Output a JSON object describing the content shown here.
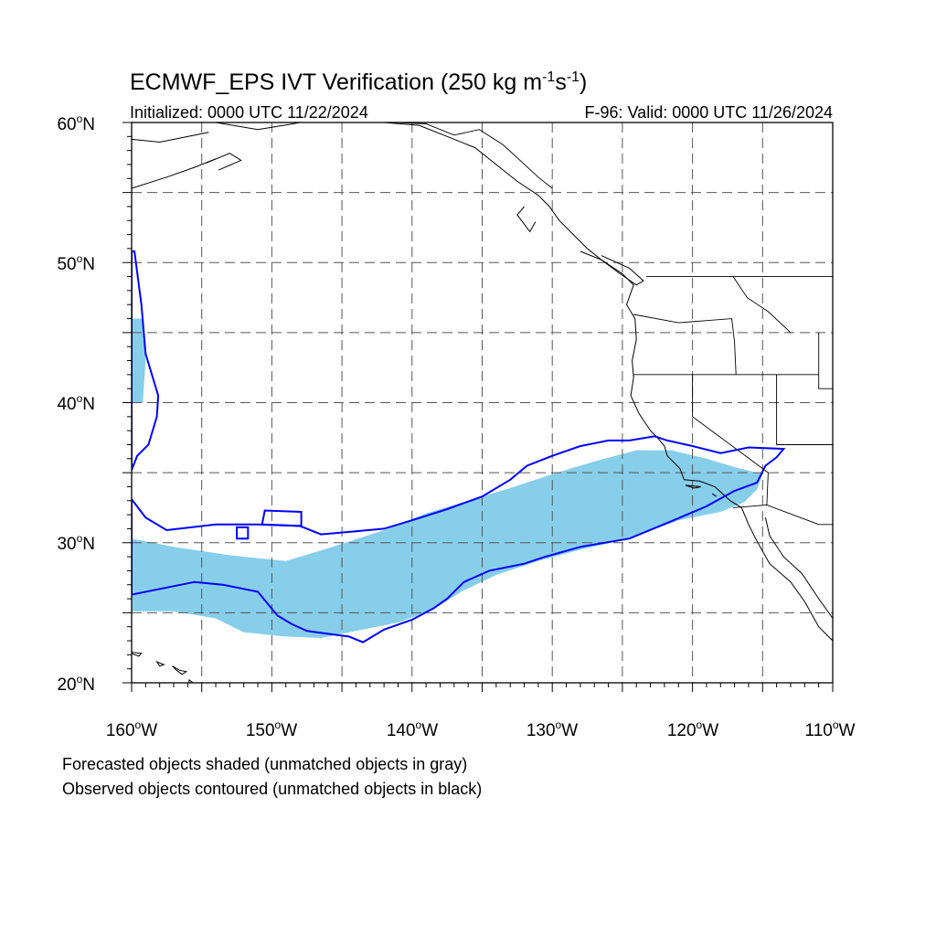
{
  "title": {
    "main": "ECMWF_EPS IVT Verification (250 kg m",
    "exp1": "-1",
    "mid": "s",
    "exp2": "-1",
    "close": ")"
  },
  "subtitle_left": "Initialized: 0000 UTC 11/22/2024",
  "subtitle_right": "F-96: Valid: 0000 UTC 11/26/2024",
  "lat_labels": [
    {
      "deg": "60",
      "suffix": "N"
    },
    {
      "deg": "50",
      "suffix": "N"
    },
    {
      "deg": "40",
      "suffix": "N"
    },
    {
      "deg": "30",
      "suffix": "N"
    },
    {
      "deg": "20",
      "suffix": "N"
    }
  ],
  "lon_labels": [
    {
      "deg": "160",
      "suffix": "W"
    },
    {
      "deg": "150",
      "suffix": "W"
    },
    {
      "deg": "140",
      "suffix": "W"
    },
    {
      "deg": "130",
      "suffix": "W"
    },
    {
      "deg": "120",
      "suffix": "W"
    },
    {
      "deg": "110",
      "suffix": "W"
    }
  ],
  "footnote_1": "Forecasted objects shaded (unmatched objects in gray)",
  "footnote_2": "Observed objects contoured (unmatched objects in black)",
  "map_extent": {
    "lon_min": -160,
    "lon_max": -110,
    "lat_min": 20,
    "lat_max": 60
  },
  "colors": {
    "forecast_fill": "#87ceeb",
    "observed_contour": "#0000ff",
    "coastline": "#000000",
    "grid": "#555555"
  },
  "forecast_objects": [
    {
      "lonlat": [
        [
          -160,
          30.3
        ],
        [
          -157,
          29.7
        ],
        [
          -153,
          29.1
        ],
        [
          -149,
          28.7
        ],
        [
          -146,
          29.6
        ],
        [
          -142,
          30.9
        ],
        [
          -139,
          32.1
        ],
        [
          -136,
          33
        ],
        [
          -133,
          33.9
        ],
        [
          -130,
          34.9
        ],
        [
          -127,
          35.8
        ],
        [
          -124,
          36.6
        ],
        [
          -121.5,
          36.6
        ],
        [
          -119,
          36
        ],
        [
          -117,
          35.4
        ],
        [
          -115,
          34.9
        ],
        [
          -115.4,
          33.8
        ],
        [
          -116.3,
          32.9
        ],
        [
          -118,
          32.2
        ],
        [
          -121,
          31.6
        ],
        [
          -124.5,
          30.3
        ],
        [
          -128,
          29.5
        ],
        [
          -131,
          28.7
        ],
        [
          -134,
          27.7
        ],
        [
          -136.5,
          26.5
        ],
        [
          -138.5,
          25.2
        ],
        [
          -141,
          24.3
        ],
        [
          -144,
          23.7
        ],
        [
          -146.5,
          23.2
        ],
        [
          -149,
          23.3
        ],
        [
          -152,
          23.6
        ],
        [
          -154,
          24.6
        ],
        [
          -157,
          25.1
        ],
        [
          -160,
          25.1
        ]
      ]
    },
    {
      "lonlat": [
        [
          -160,
          46
        ],
        [
          -159.2,
          46
        ],
        [
          -159,
          43
        ],
        [
          -159.2,
          40
        ],
        [
          -160,
          40
        ]
      ]
    }
  ],
  "observed_contours": [
    {
      "lonlat": [
        [
          -160,
          26.3
        ],
        [
          -157.5,
          26.8
        ],
        [
          -155.5,
          27.2
        ],
        [
          -153.5,
          27
        ],
        [
          -151,
          26.5
        ],
        [
          -149.6,
          24.8
        ],
        [
          -148.6,
          24.2
        ],
        [
          -147.5,
          23.7
        ],
        [
          -146,
          23.5
        ],
        [
          -144.5,
          23.3
        ],
        [
          -143.5,
          22.9
        ],
        [
          -142,
          23.8
        ],
        [
          -140,
          24.5
        ],
        [
          -138.5,
          25.3
        ],
        [
          -137.5,
          26
        ],
        [
          -136.3,
          27.2
        ],
        [
          -134.5,
          28
        ],
        [
          -132,
          28.5
        ],
        [
          -130.5,
          29
        ],
        [
          -128,
          29.7
        ],
        [
          -124.5,
          30.3
        ],
        [
          -121.6,
          31.5
        ],
        [
          -119,
          32.6
        ],
        [
          -117,
          33.7
        ],
        [
          -115.4,
          34.3
        ],
        [
          -114.8,
          35.5
        ],
        [
          -114,
          36.1
        ],
        [
          -113.5,
          36.7
        ],
        [
          -116,
          36.8
        ],
        [
          -118,
          36.4
        ],
        [
          -120,
          36.9
        ],
        [
          -121.8,
          37.3
        ],
        [
          -122.7,
          37.6
        ],
        [
          -124.5,
          37.3
        ],
        [
          -126,
          37.3
        ],
        [
          -128,
          36.9
        ],
        [
          -130,
          36.2
        ],
        [
          -131.8,
          35.5
        ],
        [
          -133,
          34.5
        ],
        [
          -135,
          33.3
        ],
        [
          -137.5,
          32.4
        ],
        [
          -140,
          31.6
        ],
        [
          -142,
          31
        ],
        [
          -144.2,
          30.8
        ],
        [
          -146.5,
          30.6
        ],
        [
          -148,
          31.2
        ],
        [
          -151,
          31.3
        ],
        [
          -154,
          31.3
        ],
        [
          -157.5,
          30.9
        ],
        [
          -159,
          31.8
        ],
        [
          -160,
          33.1
        ]
      ]
    },
    {
      "lonlat": [
        [
          -160,
          35.2
        ],
        [
          -159.6,
          36.2
        ],
        [
          -158.8,
          37
        ],
        [
          -158.2,
          39
        ],
        [
          -158.1,
          40.5
        ],
        [
          -159,
          43.5
        ],
        [
          -159.3,
          47
        ],
        [
          -159.8,
          50.8
        ],
        [
          -160,
          50.8
        ]
      ]
    },
    {
      "lonlat": [
        [
          -152.5,
          30.3
        ],
        [
          -151.7,
          30.3
        ],
        [
          -151.7,
          31.1
        ],
        [
          -152.5,
          31.1
        ]
      ]
    },
    {
      "lonlat": [
        [
          -147.9,
          32.2
        ],
        [
          -150.5,
          32.3
        ],
        [
          -150.7,
          31.3
        ],
        [
          -147.9,
          31.2
        ]
      ]
    }
  ],
  "coastlines": [
    {
      "lonlat": [
        [
          -154,
          60
        ],
        [
          -151,
          59.5
        ],
        [
          -148.5,
          59.9
        ],
        [
          -146,
          60.4
        ],
        [
          -143.5,
          60
        ]
      ]
    },
    {
      "lonlat": [
        [
          -160,
          58.8
        ],
        [
          -158,
          58.6
        ],
        [
          -156.5,
          58.9
        ],
        [
          -154.5,
          59.3
        ]
      ]
    },
    {
      "lonlat": [
        [
          -160,
          55.3
        ],
        [
          -157.5,
          56.1
        ],
        [
          -155.5,
          56.8
        ],
        [
          -154,
          57.4
        ]
      ]
    },
    {
      "lonlat": [
        [
          -154.7,
          57.1
        ],
        [
          -153,
          57.8
        ],
        [
          -152.2,
          57.3
        ],
        [
          -153.8,
          56.6
        ]
      ]
    },
    {
      "lonlat": [
        [
          -142,
          60
        ],
        [
          -139.5,
          59.8
        ],
        [
          -137.5,
          59
        ],
        [
          -135.5,
          58.2
        ],
        [
          -134,
          57
        ],
        [
          -132.5,
          55.8
        ],
        [
          -131,
          54.8
        ],
        [
          -130.2,
          54
        ],
        [
          -129.5,
          53
        ],
        [
          -128.5,
          52
        ],
        [
          -127.5,
          51
        ],
        [
          -126.5,
          50.2
        ],
        [
          -125,
          49.2
        ],
        [
          -124.2,
          48.4
        ],
        [
          -124.7,
          47
        ],
        [
          -124.1,
          46
        ],
        [
          -124,
          44.5
        ],
        [
          -124.3,
          43
        ],
        [
          -124.2,
          41.8
        ],
        [
          -124.4,
          40.5
        ],
        [
          -123.8,
          39.2
        ],
        [
          -123,
          38
        ],
        [
          -122.5,
          37.5
        ],
        [
          -122,
          36.9
        ],
        [
          -121.8,
          36.2
        ],
        [
          -120.9,
          35.3
        ],
        [
          -120.6,
          34.5
        ],
        [
          -119.5,
          34.4
        ],
        [
          -118.4,
          34
        ],
        [
          -117.3,
          33
        ],
        [
          -116.5,
          32.5
        ],
        [
          -116,
          31.3
        ],
        [
          -115.5,
          30.3
        ],
        [
          -114.5,
          28.5
        ],
        [
          -113,
          27.2
        ],
        [
          -112,
          25.8
        ],
        [
          -111,
          24
        ],
        [
          -110,
          23
        ]
      ]
    },
    {
      "lonlat": [
        [
          -132,
          54
        ],
        [
          -132.5,
          53.4
        ],
        [
          -131.6,
          52.2
        ],
        [
          -131.2,
          52.9
        ]
      ]
    },
    {
      "lonlat": [
        [
          -128,
          50.8
        ],
        [
          -126.5,
          50.2
        ],
        [
          -125.3,
          49.3
        ],
        [
          -124,
          48.4
        ],
        [
          -123.5,
          48.7
        ],
        [
          -124.5,
          49.6
        ],
        [
          -126.5,
          50.5
        ]
      ]
    },
    {
      "lonlat": [
        [
          -114.8,
          31.8
        ],
        [
          -114.5,
          30.5
        ],
        [
          -113.5,
          29
        ],
        [
          -112.2,
          27.8
        ],
        [
          -111,
          26
        ],
        [
          -110,
          24.6
        ]
      ]
    }
  ],
  "borders": [
    {
      "lonlat": [
        [
          -141,
          60
        ],
        [
          -139,
          59.9
        ],
        [
          -137,
          59.1
        ],
        [
          -135.2,
          59.5
        ],
        [
          -133.5,
          58.4
        ],
        [
          -131,
          56.1
        ],
        [
          -130,
          55.3
        ]
      ]
    },
    {
      "lonlat": [
        [
          -123.3,
          49
        ],
        [
          -110,
          49
        ]
      ]
    },
    {
      "lonlat": [
        [
          -124.2,
          46.3
        ],
        [
          -121,
          45.7
        ],
        [
          -117.2,
          46
        ],
        [
          -117,
          44.3
        ],
        [
          -116.9,
          42
        ]
      ]
    },
    {
      "lonlat": [
        [
          -124.2,
          42
        ],
        [
          -111,
          42
        ]
      ]
    },
    {
      "lonlat": [
        [
          -120,
          42
        ],
        [
          -120,
          39
        ],
        [
          -114.6,
          35
        ],
        [
          -114.7,
          32.7
        ]
      ]
    },
    {
      "lonlat": [
        [
          -117.1,
          32.5
        ],
        [
          -114.7,
          32.7
        ],
        [
          -111,
          31.3
        ],
        [
          -110,
          31.3
        ]
      ]
    },
    {
      "lonlat": [
        [
          -117.1,
          49
        ],
        [
          -116.1,
          47.5
        ],
        [
          -114.6,
          46.5
        ],
        [
          -113,
          45
        ]
      ]
    },
    {
      "lonlat": [
        [
          -114,
          42
        ],
        [
          -114,
          37
        ],
        [
          -110,
          37
        ]
      ]
    },
    {
      "lonlat": [
        [
          -111,
          45
        ],
        [
          -111,
          41
        ],
        [
          -110,
          41
        ]
      ]
    }
  ],
  "islands": [
    {
      "lonlat": [
        [
          -160.2,
          22.2
        ],
        [
          -159.3,
          22.1
        ],
        [
          -159.5,
          21.9
        ],
        [
          -160,
          22.1
        ]
      ]
    },
    {
      "lonlat": [
        [
          -158.2,
          21.5
        ],
        [
          -157.7,
          21.3
        ],
        [
          -158,
          21.2
        ]
      ]
    },
    {
      "lonlat": [
        [
          -157.1,
          21.2
        ],
        [
          -156.6,
          20.9
        ],
        [
          -156.1,
          20.8
        ],
        [
          -156.4,
          20.6
        ],
        [
          -156.8,
          20.9
        ]
      ]
    },
    {
      "lonlat": [
        [
          -155.9,
          20.2
        ],
        [
          -154.9,
          19.5
        ],
        [
          -155.4,
          19.0
        ],
        [
          -155.9,
          19.4
        ]
      ]
    },
    {
      "lonlat": [
        [
          -120.5,
          34.1
        ],
        [
          -119.4,
          34.0
        ],
        [
          -119.9,
          33.9
        ]
      ]
    },
    {
      "lonlat": [
        [
          -118.6,
          33.5
        ],
        [
          -118.3,
          33.3
        ]
      ]
    }
  ]
}
